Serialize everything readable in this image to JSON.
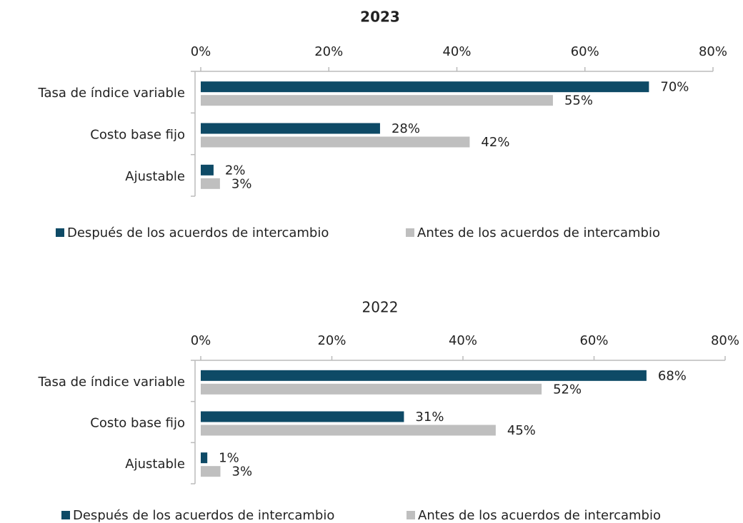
{
  "chart_data": [
    {
      "type": "bar",
      "orientation": "horizontal",
      "title": "2023",
      "categories": [
        "Tasa de índice variable",
        "Costo base fijo",
        "Ajustable"
      ],
      "series": [
        {
          "name": "Después de los acuerdos de intercambio",
          "color": "#0e4a66",
          "values": [
            70,
            28,
            2
          ],
          "value_labels": [
            "70%",
            "28%",
            "2%"
          ]
        },
        {
          "name": "Antes de los acuerdos de intercambio",
          "color": "#bfbfbf",
          "values": [
            55,
            42,
            3
          ],
          "value_labels": [
            "55%",
            "42%",
            "3%"
          ]
        }
      ],
      "xlim": [
        0,
        80
      ],
      "xticks": [
        {
          "value": 0,
          "label": "0%"
        },
        {
          "value": 20,
          "label": "20%"
        },
        {
          "value": 40,
          "label": "40%"
        },
        {
          "value": 60,
          "label": "60%"
        },
        {
          "value": 80,
          "label": "80%"
        }
      ],
      "legend": "bottom"
    },
    {
      "type": "bar",
      "orientation": "horizontal",
      "title": "2022",
      "categories": [
        "Tasa de índice variable",
        "Costo base fijo",
        "Ajustable"
      ],
      "series": [
        {
          "name": "Después de los acuerdos de intercambio",
          "color": "#0e4a66",
          "values": [
            68,
            31,
            1
          ],
          "value_labels": [
            "68%",
            "31%",
            "1%"
          ]
        },
        {
          "name": "Antes de los acuerdos de intercambio",
          "color": "#bfbfbf",
          "values": [
            52,
            45,
            3
          ],
          "value_labels": [
            "52%",
            "45%",
            "3%"
          ]
        }
      ],
      "xlim": [
        0,
        80
      ],
      "xticks": [
        {
          "value": 0,
          "label": "0%"
        },
        {
          "value": 20,
          "label": "20%"
        },
        {
          "value": 40,
          "label": "40%"
        },
        {
          "value": 60,
          "label": "60%"
        },
        {
          "value": 80,
          "label": "80%"
        }
      ],
      "legend": "bottom"
    }
  ]
}
